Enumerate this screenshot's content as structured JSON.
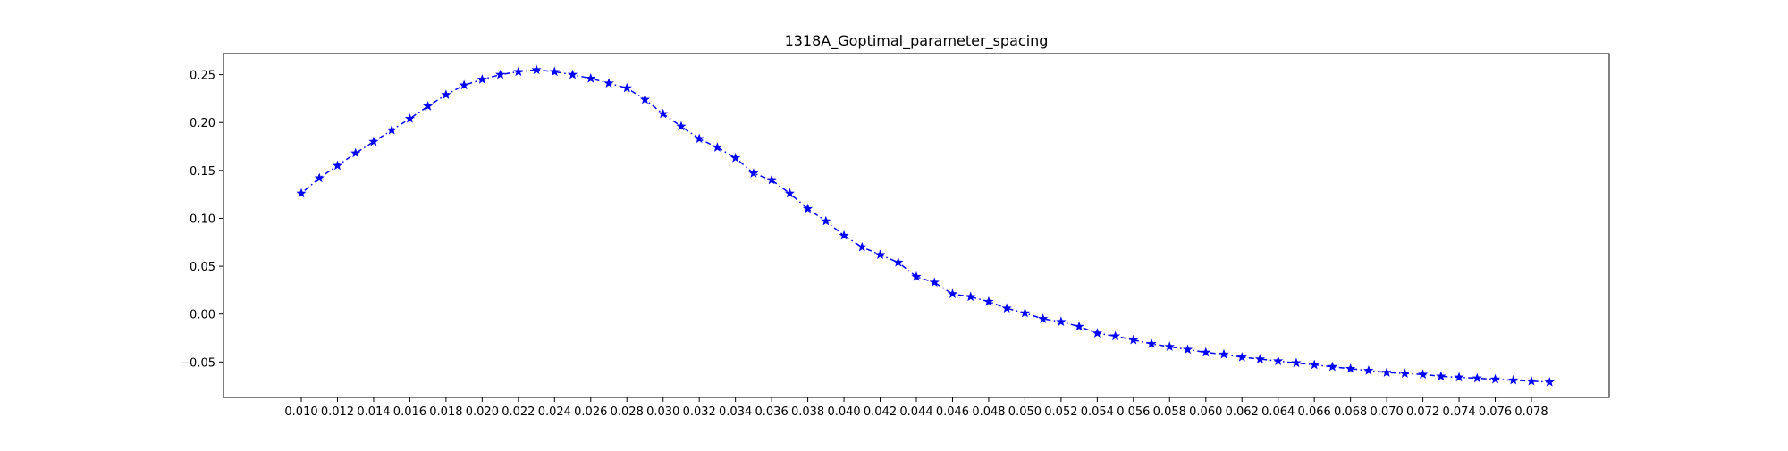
{
  "chart_data": {
    "type": "line",
    "title": "1318A_Goptimal_parameter_spacing",
    "xlabel": "",
    "ylabel": "",
    "xlim": [
      0.0057,
      0.0823
    ],
    "ylim": [
      -0.087,
      0.272
    ],
    "x_ticks": [
      "0.010",
      "0.012",
      "0.014",
      "0.016",
      "0.018",
      "0.020",
      "0.022",
      "0.024",
      "0.026",
      "0.028",
      "0.030",
      "0.032",
      "0.034",
      "0.036",
      "0.038",
      "0.040",
      "0.042",
      "0.044",
      "0.046",
      "0.048",
      "0.050",
      "0.052",
      "0.054",
      "0.056",
      "0.058",
      "0.060",
      "0.062",
      "0.064",
      "0.066",
      "0.068",
      "0.070",
      "0.072",
      "0.074",
      "0.076",
      "0.078"
    ],
    "y_ticks": [
      "−0.05",
      "0.00",
      "0.05",
      "0.10",
      "0.15",
      "0.20",
      "0.25"
    ],
    "grid": false,
    "legend": "none",
    "series": [
      {
        "color": "#0000ff",
        "marker": "star",
        "linestyle": "dash-dot",
        "x": [
          0.01,
          0.011,
          0.012,
          0.013,
          0.014,
          0.015,
          0.016,
          0.017,
          0.018,
          0.019,
          0.02,
          0.021,
          0.022,
          0.023,
          0.024,
          0.025,
          0.026,
          0.027,
          0.028,
          0.029,
          0.03,
          0.031,
          0.032,
          0.033,
          0.034,
          0.035,
          0.036,
          0.037,
          0.038,
          0.039,
          0.04,
          0.041,
          0.042,
          0.043,
          0.044,
          0.045,
          0.046,
          0.047,
          0.048,
          0.049,
          0.05,
          0.051,
          0.052,
          0.053,
          0.054,
          0.055,
          0.056,
          0.057,
          0.058,
          0.059,
          0.06,
          0.061,
          0.062,
          0.063,
          0.064,
          0.065,
          0.066,
          0.067,
          0.068,
          0.069,
          0.07,
          0.071,
          0.072,
          0.073,
          0.074,
          0.075,
          0.076,
          0.077,
          0.078,
          0.079
        ],
        "y": [
          0.126,
          0.142,
          0.155,
          0.168,
          0.18,
          0.192,
          0.204,
          0.217,
          0.229,
          0.239,
          0.245,
          0.25,
          0.253,
          0.255,
          0.253,
          0.25,
          0.246,
          0.241,
          0.236,
          0.224,
          0.209,
          0.196,
          0.183,
          0.174,
          0.163,
          0.147,
          0.14,
          0.126,
          0.11,
          0.097,
          0.082,
          0.07,
          0.062,
          0.054,
          0.039,
          0.033,
          0.021,
          0.018,
          0.013,
          0.006,
          0.001,
          -0.005,
          -0.008,
          -0.013,
          -0.02,
          -0.023,
          -0.027,
          -0.031,
          -0.034,
          -0.037,
          -0.04,
          -0.042,
          -0.045,
          -0.047,
          -0.049,
          -0.051,
          -0.053,
          -0.055,
          -0.057,
          -0.059,
          -0.061,
          -0.062,
          -0.063,
          -0.065,
          -0.066,
          -0.067,
          -0.068,
          -0.069,
          -0.07,
          -0.071
        ]
      }
    ]
  }
}
